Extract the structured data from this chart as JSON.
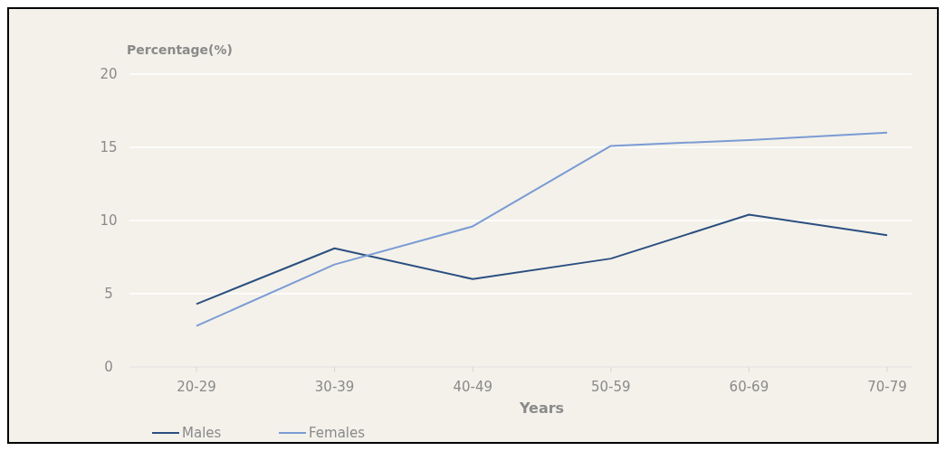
{
  "chart_data": {
    "type": "line",
    "xlabel": "Years",
    "ylabel": "Percentage(%)",
    "categories": [
      "20-29",
      "30-39",
      "40-49",
      "50-59",
      "60-69",
      "70-79"
    ],
    "series": [
      {
        "name": "Males",
        "color": "#2b4f80",
        "values": [
          4.3,
          8.1,
          6.0,
          7.4,
          10.4,
          9.0
        ]
      },
      {
        "name": "Females",
        "color": "#7b9bd4",
        "values": [
          2.8,
          7.0,
          9.6,
          15.1,
          15.5,
          16.0
        ]
      }
    ],
    "ylim": [
      0,
      20
    ],
    "yticks": [
      0,
      5,
      10,
      15,
      20
    ],
    "grid": "y",
    "legend": "bottom left",
    "marker": "none",
    "line_style": "solid"
  }
}
